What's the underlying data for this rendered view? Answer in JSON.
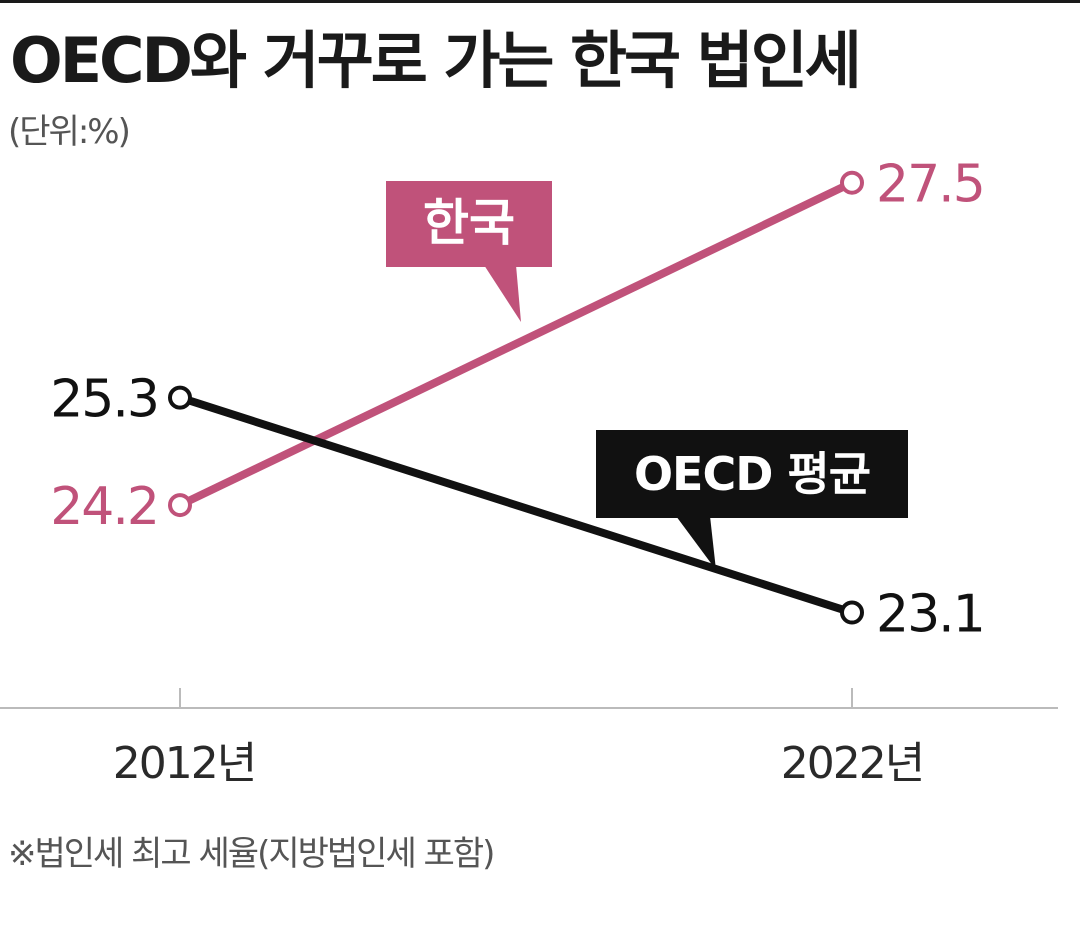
{
  "title": "OECD와 거꾸로 가는 한국 법인세",
  "unit_label": "(단위:%)",
  "footnote": "※법인세 최고 세율(지방법인세 포함)",
  "colors": {
    "korea": "#c0527a",
    "oecd": "#111111",
    "axis": "#bbbbbb",
    "text": "#1a1a1a",
    "muted": "#555555"
  },
  "chart_data": {
    "type": "line",
    "x": [
      "2012년",
      "2022년"
    ],
    "series": [
      {
        "name": "한국",
        "values": [
          24.2,
          27.5
        ]
      },
      {
        "name": "OECD 평균",
        "values": [
          25.3,
          23.1
        ]
      }
    ],
    "value_labels": [
      [
        "24.2",
        "27.5"
      ],
      [
        "25.3",
        "23.1"
      ]
    ],
    "ylabel": "(단위:%)",
    "ylim": [
      22.0,
      28.5
    ],
    "grid": false,
    "legend": "callout-labels"
  }
}
